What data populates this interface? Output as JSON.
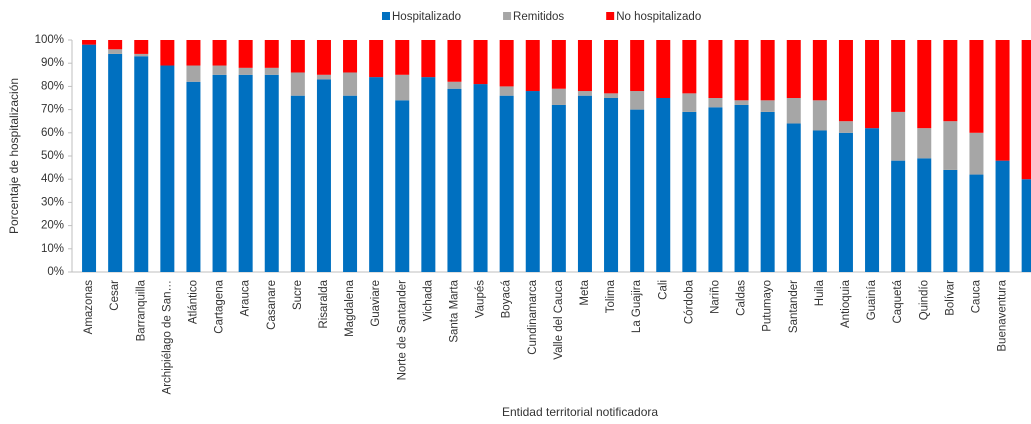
{
  "chart_data": {
    "type": "stacked_bar",
    "x_label": "Entidad territorial notificadora",
    "y_label": "Porcentaje de hospitalización",
    "categories": [
      "Amazonas",
      "Cesar",
      "Barranquilla",
      "Archipiélago de San…",
      "Atlántico",
      "Cartagena",
      "Arauca",
      "Casanare",
      "Sucre",
      "Risaralda",
      "Magdalena",
      "Guaviare",
      "Norte de Santander",
      "Vichada",
      "Santa Marta",
      "Vaupés",
      "Boyacá",
      "Cundinamarca",
      "Valle del Cauca",
      "Meta",
      "Tolima",
      "La Guajira",
      "Cali",
      "Córdoba",
      "Nariño",
      "Caldas",
      "Putumayo",
      "Santander",
      "Huila",
      "Antioquia",
      "Guainía",
      "Caquetá",
      "Quindío",
      "Bolívar",
      "Cauca",
      "Buenaventura",
      null
    ],
    "series": [
      {
        "name": "Hospitalizado",
        "color": "#0070c0",
        "values": [
          98,
          94,
          93,
          89,
          82,
          85,
          85,
          85,
          76,
          83,
          76,
          84,
          74,
          84,
          79,
          81,
          76,
          78,
          72,
          76,
          75,
          70,
          75,
          69,
          71,
          72,
          69,
          64,
          61,
          60,
          62,
          48,
          49,
          44,
          42,
          48,
          40
        ]
      },
      {
        "name": "Remitidos",
        "color": "#a6a6a6",
        "values": [
          0,
          2,
          1,
          0,
          7,
          4,
          3,
          3,
          10,
          2,
          10,
          0,
          11,
          0,
          3,
          0,
          4,
          0,
          7,
          2,
          2,
          8,
          0,
          8,
          4,
          2,
          5,
          11,
          13,
          5,
          0,
          21,
          13,
          21,
          18,
          0,
          0
        ]
      },
      {
        "name": "No hospitalizado",
        "color": "#ff0000",
        "values": [
          2,
          4,
          6,
          11,
          11,
          11,
          12,
          12,
          14,
          15,
          14,
          16,
          15,
          16,
          18,
          19,
          20,
          22,
          21,
          22,
          23,
          22,
          25,
          23,
          25,
          26,
          26,
          25,
          26,
          35,
          38,
          31,
          38,
          35,
          40,
          52,
          60
        ]
      }
    ],
    "ylim": [
      0,
      100
    ],
    "yticks": [
      {
        "value": 0,
        "label": "0%"
      },
      {
        "value": 10,
        "label": "10%"
      },
      {
        "value": 20,
        "label": "20%"
      },
      {
        "value": 30,
        "label": "30%"
      },
      {
        "value": 40,
        "label": "40%"
      },
      {
        "value": 50,
        "label": "50%"
      },
      {
        "value": 60,
        "label": "60%"
      },
      {
        "value": 70,
        "label": "70%"
      },
      {
        "value": 80,
        "label": "80%"
      },
      {
        "value": 90,
        "label": "90%"
      },
      {
        "value": 100,
        "label": "100%"
      }
    ],
    "legend": "top"
  }
}
